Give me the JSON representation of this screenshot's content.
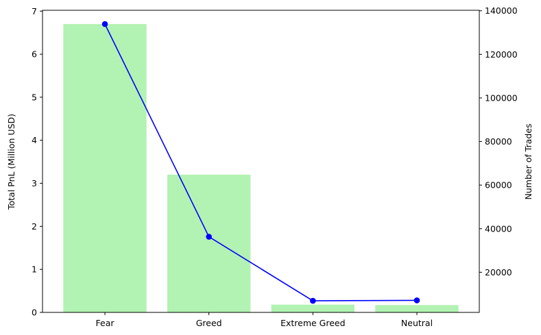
{
  "chart_data": {
    "type": "bar",
    "title": "",
    "categories": [
      "Fear",
      "Greed",
      "Extreme Greed",
      "Neutral"
    ],
    "series": [
      {
        "name": "Total PnL (Million USD)",
        "type": "bar",
        "axis": "left",
        "color": "#b2f2b2",
        "values": [
          6.7,
          3.2,
          0.18,
          0.17
        ]
      },
      {
        "name": "Number of Trades",
        "type": "line",
        "axis": "right",
        "color": "#0000ff",
        "marker": "circle",
        "values": [
          133900,
          36300,
          6900,
          7100
        ]
      }
    ],
    "y_left": {
      "label": "Total PnL (Million USD)",
      "lim": [
        0,
        7.02
      ],
      "ticks": [
        0,
        1,
        2,
        3,
        4,
        5,
        6,
        7
      ],
      "tick_labels": [
        "0",
        "1",
        "2",
        "3",
        "4",
        "5",
        "6",
        "7"
      ]
    },
    "y_right": {
      "label": "Number of Trades",
      "lim": [
        1580,
        140220
      ],
      "ticks": [
        20000,
        40000,
        60000,
        80000,
        100000,
        120000,
        140000
      ],
      "tick_labels": [
        "20000",
        "40000",
        "60000",
        "80000",
        "100000",
        "120000",
        "140000"
      ]
    },
    "grid": false,
    "legend": "none"
  }
}
